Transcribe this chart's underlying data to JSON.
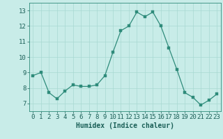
{
  "x": [
    0,
    1,
    2,
    3,
    4,
    5,
    6,
    7,
    8,
    9,
    10,
    11,
    12,
    13,
    14,
    15,
    16,
    17,
    18,
    19,
    20,
    21,
    22,
    23
  ],
  "y": [
    8.8,
    9.0,
    7.7,
    7.3,
    7.8,
    8.2,
    8.1,
    8.1,
    8.2,
    8.8,
    10.3,
    11.7,
    12.0,
    12.9,
    12.6,
    12.9,
    12.0,
    10.6,
    9.2,
    7.7,
    7.4,
    6.9,
    7.2,
    7.6
  ],
  "line_color": "#2e8b7a",
  "marker_color": "#2e8b7a",
  "bg_color": "#c8ece8",
  "grid_color": "#a8d8d2",
  "xlabel": "Humidex (Indice chaleur)",
  "ylabel_ticks": [
    7,
    8,
    9,
    10,
    11,
    12,
    13
  ],
  "xlim": [
    -0.5,
    23.5
  ],
  "ylim": [
    6.5,
    13.5
  ],
  "axis_color": "#2e8b7a",
  "label_color": "#1a5f57",
  "tick_color": "#1a5f57",
  "font_size_xlabel": 7,
  "font_size_ticks": 6.5
}
